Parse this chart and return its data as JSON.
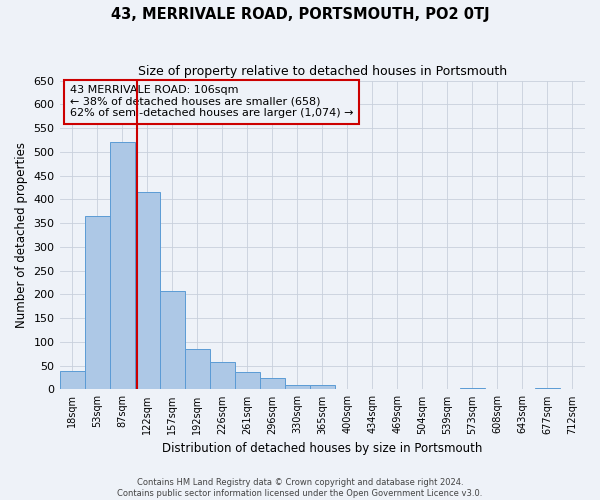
{
  "title": "43, MERRIVALE ROAD, PORTSMOUTH, PO2 0TJ",
  "subtitle": "Size of property relative to detached houses in Portsmouth",
  "xlabel": "Distribution of detached houses by size in Portsmouth",
  "ylabel": "Number of detached properties",
  "bin_labels": [
    "18sqm",
    "53sqm",
    "87sqm",
    "122sqm",
    "157sqm",
    "192sqm",
    "226sqm",
    "261sqm",
    "296sqm",
    "330sqm",
    "365sqm",
    "400sqm",
    "434sqm",
    "469sqm",
    "504sqm",
    "539sqm",
    "573sqm",
    "608sqm",
    "643sqm",
    "677sqm",
    "712sqm"
  ],
  "bar_values": [
    38,
    365,
    520,
    415,
    207,
    85,
    57,
    37,
    25,
    10,
    10,
    0,
    0,
    0,
    0,
    0,
    2,
    0,
    0,
    2,
    0
  ],
  "bar_color": "#adc8e6",
  "bar_edge_color": "#5b9bd5",
  "vline_x": 2.58,
  "vline_color": "#cc0000",
  "annotation_text": "43 MERRIVALE ROAD: 106sqm\n← 38% of detached houses are smaller (658)\n62% of semi-detached houses are larger (1,074) →",
  "annotation_box_edge": "#cc0000",
  "ylim": [
    0,
    650
  ],
  "yticks": [
    0,
    50,
    100,
    150,
    200,
    250,
    300,
    350,
    400,
    450,
    500,
    550,
    600,
    650
  ],
  "grid_color": "#c8d0dc",
  "background_color": "#eef2f8",
  "footer_line1": "Contains HM Land Registry data © Crown copyright and database right 2024.",
  "footer_line2": "Contains public sector information licensed under the Open Government Licence v3.0."
}
